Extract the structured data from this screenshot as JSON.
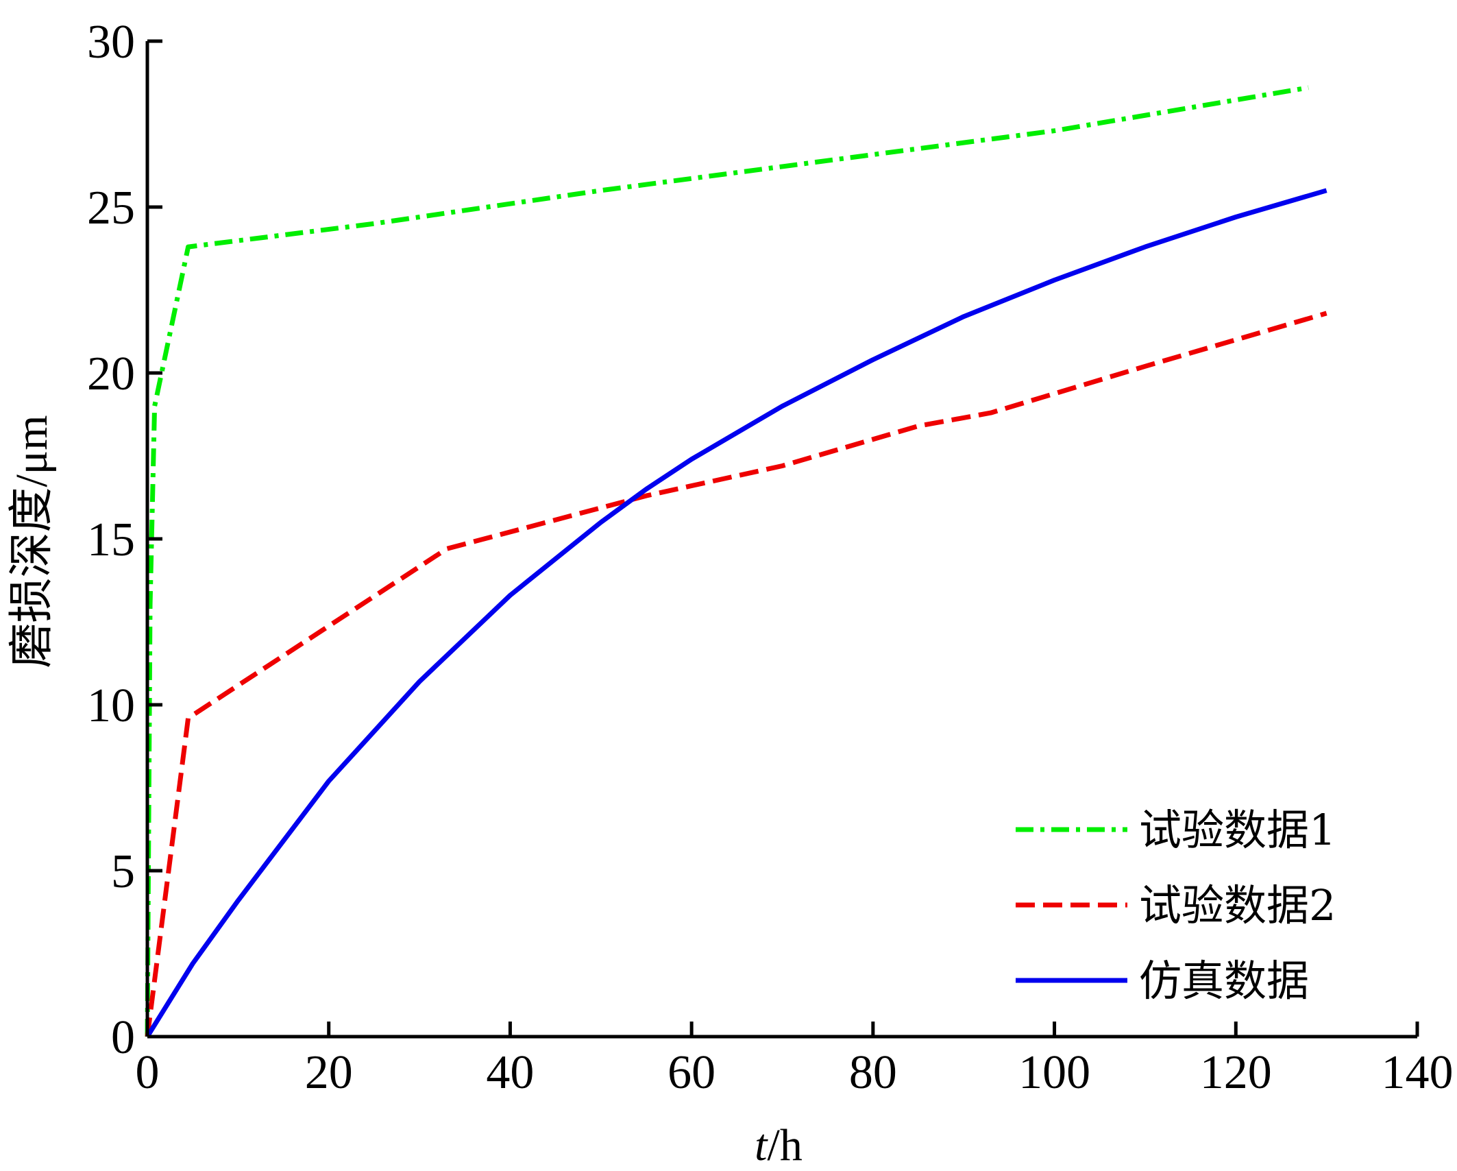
{
  "chart_data": {
    "type": "line",
    "xlim": [
      0,
      140
    ],
    "ylim": [
      0,
      30
    ],
    "xticks": [
      0,
      20,
      40,
      60,
      80,
      100,
      120,
      140
    ],
    "yticks": [
      0,
      5,
      10,
      15,
      20,
      25,
      30
    ],
    "xlabel_italic": "t",
    "xlabel_rest": "/h",
    "ylabel": "磨损深度/μm",
    "grid": false,
    "legend_position": "bottom-right",
    "series": [
      {
        "name": "试验数据1",
        "color": "#00ee00",
        "dash": "dash-dot",
        "x": [
          0,
          0.3,
          0.8,
          4.5,
          25,
          50,
          75,
          100,
          128
        ],
        "y": [
          0,
          13,
          19,
          23.8,
          24.5,
          25.5,
          26.4,
          27.3,
          28.6
        ]
      },
      {
        "name": "试验数据2",
        "color": "#ee0000",
        "dash": "dashed",
        "x": [
          0,
          4.5,
          33,
          55,
          70,
          85,
          93,
          110,
          130
        ],
        "y": [
          0,
          9.6,
          14.7,
          16.3,
          17.2,
          18.4,
          18.8,
          20.2,
          21.8
        ]
      },
      {
        "name": "仿真数据",
        "color": "#0000ee",
        "dash": "solid",
        "x": [
          0,
          5,
          10,
          20,
          30,
          40,
          50,
          55,
          60,
          70,
          80,
          90,
          100,
          110,
          120,
          130
        ],
        "y": [
          0,
          2.2,
          4.1,
          7.7,
          10.7,
          13.3,
          15.5,
          16.5,
          17.4,
          19.0,
          20.4,
          21.7,
          22.8,
          23.8,
          24.7,
          25.5
        ]
      }
    ]
  }
}
